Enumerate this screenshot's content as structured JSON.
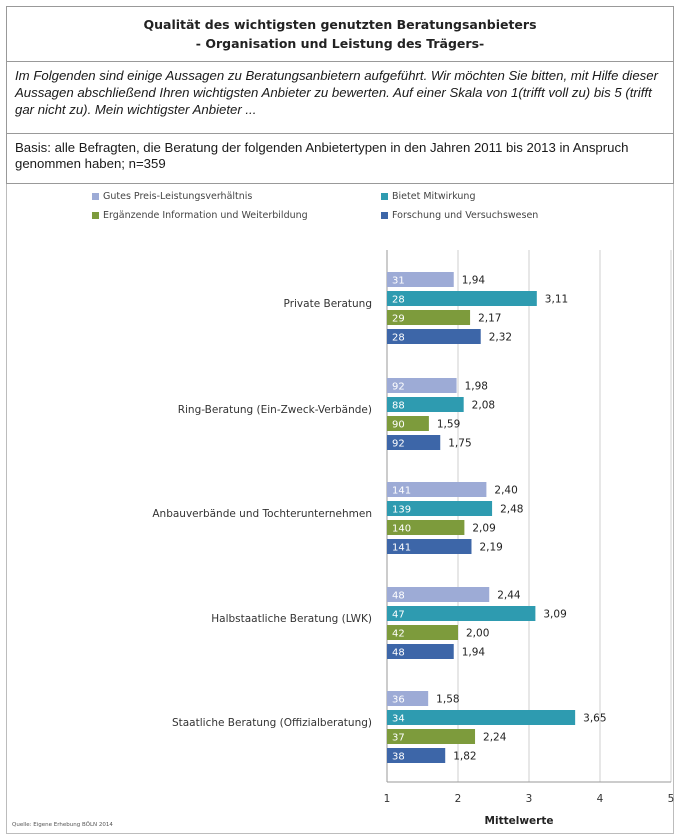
{
  "header": {
    "title_line1": "Qualität des wichtigsten genutzten Beratungsanbieters",
    "title_line2": "- Organisation und Leistung des Trägers-"
  },
  "question": "Im Folgenden sind einige Aussagen zu Beratungsanbietern aufgeführt. Wir möchten Sie bitten, mit Hilfe dieser Aussagen abschließend Ihren wichtigsten Anbieter zu bewerten. Auf einer Skala von 1(trifft voll zu) bis 5 (trifft gar nicht zu). Mein wichtigster Anbieter ...",
  "basis": "Basis: alle Befragten, die Beratung  der folgenden Anbietertypen in den Jahren 2011 bis 2013 in Anspruch genommen haben; n=359",
  "source": "Quelle: Eigene Erhebung BÖLN 2014",
  "colors": {
    "series1": "#9dabd6",
    "series2": "#2e9bb0",
    "series3": "#7d9b3c",
    "series4": "#3d66a8"
  },
  "chart_data": {
    "type": "bar",
    "orientation": "horizontal",
    "categories": [
      "Private Beratung",
      "Ring-Beratung (Ein-Zweck-Verbände)",
      "Anbauverbände und Tochterunternehmen",
      "Halbstaatliche Beratung (LWK)",
      "Staatliche Beratung (Offizialberatung)"
    ],
    "series": [
      {
        "name": "Gutes Preis-Leistungsverhältnis",
        "values": [
          1.94,
          1.98,
          2.4,
          2.44,
          1.58
        ],
        "n": [
          "31",
          "92",
          "141",
          "48",
          "36"
        ]
      },
      {
        "name": "Bietet Mitwirkung",
        "values": [
          3.11,
          2.08,
          2.48,
          3.09,
          3.65
        ],
        "n": [
          "28",
          "88",
          "139",
          "47",
          "34"
        ]
      },
      {
        "name": "Ergänzende Information und Weiterbildung",
        "values": [
          2.17,
          1.59,
          2.09,
          2.0,
          2.24
        ],
        "n": [
          "29",
          "90",
          "140",
          "42",
          "37"
        ]
      },
      {
        "name": "Forschung und Versuchswesen",
        "values": [
          2.32,
          1.75,
          2.19,
          1.94,
          1.82
        ],
        "n": [
          "28",
          "92",
          "141",
          "48",
          "38"
        ]
      }
    ],
    "value_labels": [
      [
        "1,94",
        "1,98",
        "2,40",
        "2,44",
        "1,58"
      ],
      [
        "3,11",
        "2,08",
        "2,48",
        "3,09",
        "3,65"
      ],
      [
        "2,17",
        "1,59",
        "2,09",
        "2,00",
        "2,24"
      ],
      [
        "2,32",
        "1,75",
        "2,19",
        "1,94",
        "1,82"
      ]
    ],
    "xlim": [
      1,
      5
    ],
    "xticks": [
      "1",
      "2",
      "3",
      "4",
      "5"
    ],
    "xlabel": "Mittelwerte",
    "grid": true,
    "legend_position": "top"
  }
}
